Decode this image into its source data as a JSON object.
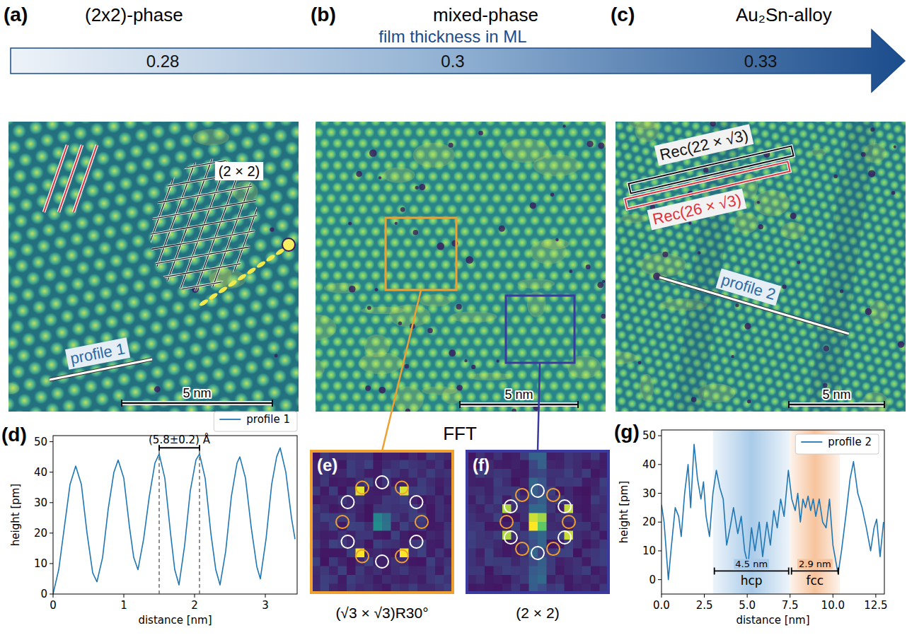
{
  "header": {
    "panels": [
      {
        "letter": "(a)",
        "title": "(2x2)-phase"
      },
      {
        "letter": "(b)",
        "title": "mixed-phase"
      },
      {
        "letter": "(c)",
        "title": "Au₂Sn-alloy"
      }
    ],
    "axis_title": "film thickness in ML",
    "thickness": [
      0.28,
      0.3,
      0.33
    ]
  },
  "images": {
    "a": {
      "lattice_label": "(2 × 2)",
      "profile_label": "profile 1",
      "scale_bar": "5 nm"
    },
    "b": {
      "scale_bar": "5 nm"
    },
    "c": {
      "rec_labels": [
        "Rec(22 × √3)",
        "Rec(26 × √3)"
      ],
      "profile_label": "profile 2",
      "scale_bar": "5 nm"
    }
  },
  "fft": {
    "title": "FFT",
    "panels": [
      {
        "letter": "(e)",
        "caption": "(√3 × √3)R30°"
      },
      {
        "letter": "(f)",
        "caption": "(2 × 2)"
      }
    ]
  },
  "chart_data": [
    {
      "type": "line",
      "title": "(d)",
      "x_label": "distance [nm]",
      "y_label": "height [pm]",
      "x": [
        0,
        0.08,
        0.16,
        0.24,
        0.32,
        0.4,
        0.48,
        0.56,
        0.62,
        0.7,
        0.78,
        0.86,
        0.92,
        1.0,
        1.08,
        1.14,
        1.2,
        1.28,
        1.36,
        1.44,
        1.5,
        1.58,
        1.66,
        1.72,
        1.78,
        1.86,
        1.94,
        2.02,
        2.07,
        2.15,
        2.23,
        2.3,
        2.36,
        2.44,
        2.52,
        2.6,
        2.64,
        2.72,
        2.8,
        2.88,
        2.93,
        3.01,
        3.09,
        3.16,
        3.21,
        3.29,
        3.37,
        3.42
      ],
      "series": [
        {
          "name": "profile 1",
          "color": "#1f77b4",
          "values": [
            0,
            8,
            22,
            36,
            42,
            36,
            20,
            7,
            4,
            12,
            28,
            40,
            44,
            38,
            22,
            12,
            8,
            18,
            32,
            43,
            46,
            38,
            20,
            8,
            3,
            16,
            34,
            44,
            46,
            38,
            20,
            8,
            3,
            14,
            32,
            43,
            45,
            38,
            22,
            9,
            5,
            18,
            36,
            45,
            48,
            40,
            25,
            18
          ]
        }
      ],
      "xlim": [
        0,
        3.45
      ],
      "ylim": [
        0,
        52
      ],
      "xticks": [
        0,
        1,
        2,
        3
      ],
      "yticks": [
        0,
        10,
        20,
        30,
        40,
        50
      ],
      "legend": "top",
      "annotations": [
        {
          "text": "(5.8±0.2) Å",
          "x": [
            1.5,
            2.07
          ],
          "y": 48
        }
      ]
    },
    {
      "type": "line",
      "title": "(g)",
      "x_label": "distance [nm]",
      "y_label": "height [pm]",
      "x": [
        0,
        0.15,
        0.4,
        0.55,
        0.8,
        1.0,
        1.15,
        1.35,
        1.55,
        1.7,
        1.9,
        2.1,
        2.3,
        2.45,
        2.6,
        2.8,
        3.0,
        3.2,
        3.4,
        3.6,
        3.8,
        4.0,
        4.2,
        4.45,
        4.65,
        4.85,
        5.05,
        5.25,
        5.45,
        5.7,
        5.9,
        6.15,
        6.35,
        6.55,
        6.75,
        6.95,
        7.15,
        7.4,
        7.6,
        7.8,
        7.95,
        8.1,
        8.25,
        8.4,
        8.55,
        8.7,
        8.85,
        9.0,
        9.2,
        9.4,
        9.6,
        9.8,
        10.0,
        10.3,
        10.5,
        10.75,
        11.0,
        11.2,
        11.45,
        11.7,
        11.95,
        12.2,
        12.4,
        12.55,
        12.75,
        12.95
      ],
      "series": [
        {
          "name": "profile 2",
          "color": "#1f77b4",
          "values": [
            26,
            20,
            0,
            10,
            25,
            22,
            15,
            30,
            40,
            25,
            47,
            35,
            28,
            34,
            22,
            15,
            30,
            38,
            32,
            28,
            12,
            18,
            25,
            16,
            22,
            10,
            5,
            18,
            10,
            20,
            8,
            20,
            12,
            24,
            18,
            28,
            22,
            38,
            28,
            24,
            30,
            20,
            28,
            25,
            29,
            24,
            28,
            22,
            28,
            20,
            18,
            28,
            12,
            2,
            10,
            22,
            35,
            41,
            30,
            25,
            18,
            10,
            18,
            21,
            8,
            20
          ]
        }
      ],
      "xlim": [
        0,
        13
      ],
      "ylim": [
        -5,
        52
      ],
      "xticks": [
        {
          "value": 0,
          "label": "0.0"
        },
        {
          "value": 2.5,
          "label": "2.5"
        },
        {
          "value": 5,
          "label": "5.0"
        },
        {
          "value": 7.5,
          "label": "7.5"
        },
        {
          "value": 10,
          "label": "10.0"
        },
        {
          "value": 12.5,
          "label": "12.5"
        }
      ],
      "yticks": [
        0,
        10,
        20,
        30,
        40,
        50
      ],
      "legend": "upper right",
      "spans": [
        {
          "label": "hcp",
          "width_label": "4.5 nm",
          "x": [
            3.0,
            7.5
          ],
          "y": 3,
          "color": "#a9cbe9"
        },
        {
          "label": "fcc",
          "width_label": "2.9 nm",
          "x": [
            7.5,
            10.4
          ],
          "y": 3,
          "color": "#f7c39c"
        }
      ]
    }
  ]
}
